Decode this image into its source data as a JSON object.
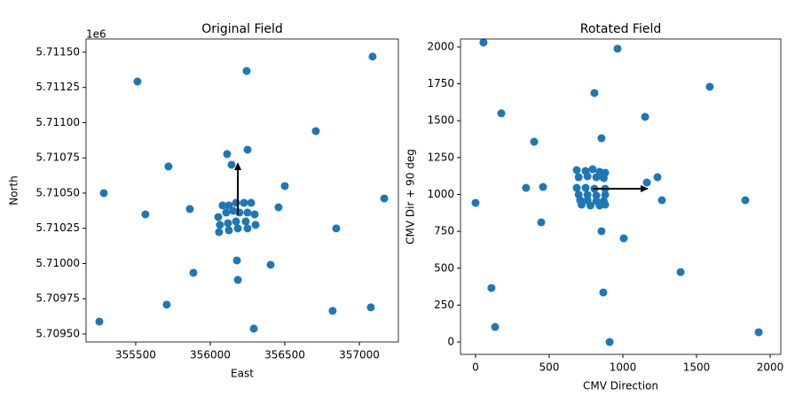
{
  "chart_data": [
    {
      "type": "scatter",
      "title": "Original Field",
      "x_label": "East",
      "y_label": "North",
      "y_offset_label": "1e6",
      "color": "#1f77b4",
      "x": [
        355512,
        356244,
        357089,
        355286,
        355565,
        355720,
        355863,
        356113,
        356143,
        356250,
        356500,
        356708,
        356458,
        357167,
        356845,
        356179,
        355887,
        356185,
        356405,
        355708,
        356821,
        357077,
        356292,
        355256,
        356083,
        356125,
        356173,
        356226,
        356274,
        356054,
        356107,
        356155,
        356196,
        356250,
        356298,
        356065,
        356119,
        356173,
        356238,
        356304,
        356059,
        356125,
        356185,
        356250
      ],
      "y": [
        5711292,
        5711367,
        5711469,
        5710500,
        5710349,
        5710689,
        5710387,
        5710777,
        5710701,
        5710808,
        5710550,
        5710940,
        5710399,
        5710462,
        5710249,
        5710022,
        5709934,
        5709884,
        5709991,
        5709708,
        5709664,
        5709689,
        5709538,
        5709588,
        5710412,
        5710412,
        5710431,
        5710431,
        5710431,
        5710330,
        5710362,
        5710374,
        5710362,
        5710362,
        5710349,
        5710274,
        5710286,
        5710299,
        5710299,
        5710274,
        5710223,
        5710236,
        5710249,
        5710249
      ],
      "arrow_start": [
        356185,
        5710343
      ],
      "arrow_end": [
        356185,
        5710720
      ],
      "xlim": [
        355167,
        357262
      ],
      "ylim": [
        5709443,
        5711594
      ],
      "xticks": [
        355500,
        356000,
        356500,
        357000
      ],
      "yticks": [
        {
          "value": 5709500,
          "label": "5.70950"
        },
        {
          "value": 5709750,
          "label": "5.70975"
        },
        {
          "value": 5710000,
          "label": "5.71000"
        },
        {
          "value": 5710250,
          "label": "5.71025"
        },
        {
          "value": 5710500,
          "label": "5.71050"
        },
        {
          "value": 5710750,
          "label": "5.71075"
        },
        {
          "value": 5711000,
          "label": "5.71100"
        },
        {
          "value": 5711250,
          "label": "5.71125"
        },
        {
          "value": 5711500,
          "label": "5.71150"
        }
      ]
    },
    {
      "type": "scatter",
      "title": "Rotated Field",
      "x_label": "CMV Direction",
      "y_label": "CMV Dir + 90 deg",
      "color": "#1f77b4",
      "x": [
        54,
        964,
        807,
        175,
        1151,
        1590,
        398,
        855,
        0,
        343,
        458,
        446,
        1235,
        1163,
        1265,
        1831,
        855,
        1006,
        108,
        867,
        1392,
        133,
        910,
        1922,
        687,
        747,
        795,
        843,
        880,
        700,
        760,
        820,
        870,
        687,
        747,
        807,
        880,
        700,
        760,
        820,
        880,
        710,
        760,
        820,
        870,
        720,
        780,
        843,
        880
      ],
      "y": [
        2030,
        1988,
        1688,
        1550,
        1526,
        1730,
        1357,
        1381,
        943,
        1045,
        1051,
        811,
        1117,
        1081,
        961,
        961,
        751,
        703,
        366,
        336,
        474,
        102,
        0,
        66,
        1165,
        1159,
        1171,
        1153,
        1147,
        1117,
        1123,
        1117,
        1111,
        1045,
        1045,
        1039,
        1039,
        999,
        997,
        993,
        997,
        961,
        961,
        955,
        955,
        931,
        925,
        925,
        931
      ],
      "arrow_start": [
        795,
        1039
      ],
      "arrow_end": [
        1175,
        1039
      ],
      "xlim": [
        -102,
        2072
      ],
      "ylim": [
        -84,
        2054
      ],
      "xticks": [
        0,
        500,
        1000,
        1500,
        2000
      ],
      "yticks": [
        0,
        250,
        500,
        750,
        1000,
        1250,
        1500,
        1750,
        2000
      ]
    }
  ]
}
